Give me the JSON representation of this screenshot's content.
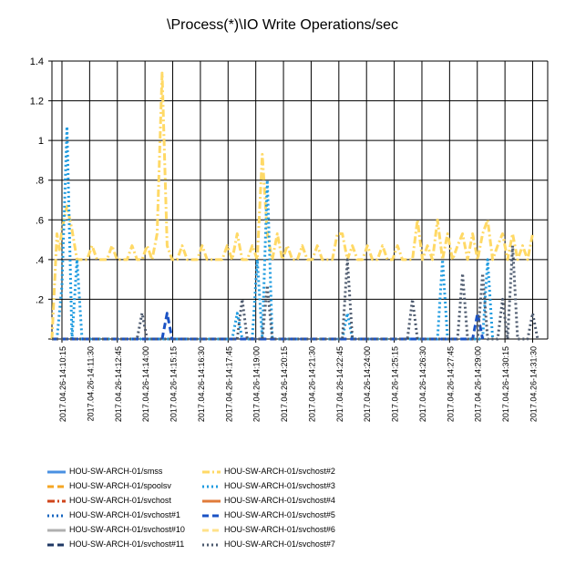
{
  "chart_data": {
    "type": "line",
    "title": "\\Process(*)\\IO Write Operations/sec",
    "xlabel": "",
    "ylabel": "",
    "ylim": [
      0,
      1.4
    ],
    "yticks": [
      "",
      ".2",
      ".4",
      ".6",
      ".8",
      "1",
      "1.2",
      "1.4"
    ],
    "x_tick_labels": [
      "2017.04.26-14:10:15",
      "2017.04.26-14:11:30",
      "2017.04.26-14:12:45",
      "2017.04.26-14:14:00",
      "2017.04.26-14:15:15",
      "2017.04.26-14:16:30",
      "2017.04.26-14:17:45",
      "2017.04.26-14:19:00",
      "2017.04.26-14:20:15",
      "2017.04.26-14:21:30",
      "2017.04.26-14:22:45",
      "2017.04.26-14:24:00",
      "2017.04.26-14:25:15",
      "2017.04.26-14:26:30",
      "2017.04.26-14:27:45",
      "2017.04.26-14:29:00",
      "2017.04.26-14:30:15",
      "2017.04.26-14:31:30"
    ],
    "grid": true,
    "legend_position": "bottom",
    "series": [
      {
        "name": "HOU-SW-ARCH-01/smss",
        "color": "#4a90e2",
        "dash": "solid",
        "points": []
      },
      {
        "name": "HOU-SW-ARCH-01/spoolsv",
        "color": "#f5a623",
        "dash": "dash",
        "points": []
      },
      {
        "name": "HOU-SW-ARCH-01/svchost",
        "color": "#d0451b",
        "dash": "dashdot",
        "points": []
      },
      {
        "name": "HOU-SW-ARCH-01/svchost#1",
        "color": "#1565c0",
        "dash": "dot",
        "points": []
      },
      {
        "name": "HOU-SW-ARCH-01/svchost#10",
        "color": "#b0b0b0",
        "dash": "solid",
        "points": []
      },
      {
        "name": "HOU-SW-ARCH-01/svchost#11",
        "color": "#1f3864",
        "dash": "dash",
        "points": []
      },
      {
        "name": "HOU-SW-ARCH-01/svchost#2",
        "color": "#ffd966",
        "dash": "dashdot",
        "points": [
          [
            0,
            0
          ],
          [
            1,
            0.53
          ],
          [
            1.5,
            0.45
          ],
          [
            2,
            0.55
          ],
          [
            3,
            0.67
          ],
          [
            4,
            0.55
          ],
          [
            5,
            0.4
          ],
          [
            6,
            0.4
          ],
          [
            7,
            0.4
          ],
          [
            8,
            0.47
          ],
          [
            9,
            0.4
          ],
          [
            10,
            0.4
          ],
          [
            11,
            0.4
          ],
          [
            12,
            0.47
          ],
          [
            13,
            0.4
          ],
          [
            14,
            0.4
          ],
          [
            15,
            0.4
          ],
          [
            16,
            0.47
          ],
          [
            17,
            0.4
          ],
          [
            18,
            0.4
          ],
          [
            19,
            0.47
          ],
          [
            20,
            0.4
          ],
          [
            21,
            0.53
          ],
          [
            22,
            1.34
          ],
          [
            23,
            0.47
          ],
          [
            24,
            0.4
          ],
          [
            25,
            0.4
          ],
          [
            26,
            0.47
          ],
          [
            27,
            0.4
          ],
          [
            28,
            0.4
          ],
          [
            29,
            0.4
          ],
          [
            30,
            0.47
          ],
          [
            31,
            0.4
          ],
          [
            32,
            0.4
          ],
          [
            33,
            0.4
          ],
          [
            34,
            0.4
          ],
          [
            35,
            0.47
          ],
          [
            36,
            0.4
          ],
          [
            37,
            0.53
          ],
          [
            38,
            0.4
          ],
          [
            39,
            0.4
          ],
          [
            40,
            0.47
          ],
          [
            41,
            0.4
          ],
          [
            42,
            0.93
          ],
          [
            43,
            0.53
          ],
          [
            44,
            0.4
          ],
          [
            45,
            0.53
          ],
          [
            46,
            0.4
          ],
          [
            47,
            0.47
          ],
          [
            48,
            0.4
          ],
          [
            49,
            0.4
          ],
          [
            50,
            0.47
          ],
          [
            51,
            0.4
          ],
          [
            52,
            0.4
          ],
          [
            53,
            0.47
          ],
          [
            54,
            0.4
          ],
          [
            55,
            0.4
          ],
          [
            56,
            0.4
          ],
          [
            57,
            0.53
          ],
          [
            58,
            0.53
          ],
          [
            59,
            0.4
          ],
          [
            60,
            0.47
          ],
          [
            61,
            0.4
          ],
          [
            62,
            0.4
          ],
          [
            63,
            0.47
          ],
          [
            64,
            0.4
          ],
          [
            65,
            0.4
          ],
          [
            66,
            0.47
          ],
          [
            67,
            0.4
          ],
          [
            68,
            0.4
          ],
          [
            69,
            0.47
          ],
          [
            70,
            0.4
          ],
          [
            71,
            0.4
          ],
          [
            72,
            0.4
          ],
          [
            73,
            0.6
          ],
          [
            74,
            0.4
          ],
          [
            75,
            0.47
          ],
          [
            76,
            0.4
          ],
          [
            77,
            0.6
          ],
          [
            78,
            0.4
          ],
          [
            79,
            0.53
          ],
          [
            80,
            0.4
          ],
          [
            81,
            0.47
          ],
          [
            82,
            0.53
          ],
          [
            83,
            0.4
          ],
          [
            84,
            0.53
          ],
          [
            85,
            0.4
          ],
          [
            86,
            0.53
          ],
          [
            87,
            0.6
          ],
          [
            88,
            0.4
          ],
          [
            89,
            0.47
          ],
          [
            90,
            0.53
          ],
          [
            91,
            0.4
          ],
          [
            92,
            0.53
          ],
          [
            93,
            0.4
          ],
          [
            94,
            0.47
          ],
          [
            95,
            0.4
          ],
          [
            96,
            0.53
          ]
        ]
      },
      {
        "name": "HOU-SW-ARCH-01/svchost#3",
        "color": "#1e9be0",
        "dash": "dot",
        "points": [
          [
            0,
            0
          ],
          [
            1,
            0
          ],
          [
            2,
            0.27
          ],
          [
            3,
            1.07
          ],
          [
            4,
            0
          ],
          [
            5,
            0.4
          ],
          [
            6,
            0
          ],
          [
            36,
            0
          ],
          [
            37,
            0.13
          ],
          [
            38,
            0
          ],
          [
            40,
            0
          ],
          [
            41,
            0.4
          ],
          [
            42,
            0
          ],
          [
            43,
            0.8
          ],
          [
            44,
            0
          ],
          [
            58,
            0
          ],
          [
            59,
            0.13
          ],
          [
            60,
            0
          ],
          [
            77,
            0
          ],
          [
            78,
            0.4
          ],
          [
            79,
            0
          ],
          [
            86,
            0
          ],
          [
            87,
            0.4
          ],
          [
            88,
            0
          ]
        ]
      },
      {
        "name": "HOU-SW-ARCH-01/svchost#4",
        "color": "#e07b39",
        "dash": "solid",
        "points": []
      },
      {
        "name": "HOU-SW-ARCH-01/svchost#5",
        "color": "#1a52c4",
        "dash": "dash",
        "points": [
          [
            0,
            0
          ],
          [
            22,
            0
          ],
          [
            23,
            0.13
          ],
          [
            24,
            0
          ],
          [
            84,
            0
          ],
          [
            85,
            0.13
          ],
          [
            86,
            0
          ]
        ]
      },
      {
        "name": "HOU-SW-ARCH-01/svchost#6",
        "color": "#ffe28a",
        "dash": "dash",
        "points": []
      },
      {
        "name": "HOU-SW-ARCH-01/svchost#7",
        "color": "#4d5a6e",
        "dash": "dot",
        "points": [
          [
            0,
            0
          ],
          [
            17,
            0
          ],
          [
            18,
            0.13
          ],
          [
            19,
            0
          ],
          [
            37,
            0
          ],
          [
            38,
            0.2
          ],
          [
            39,
            0
          ],
          [
            42,
            0
          ],
          [
            43,
            0.27
          ],
          [
            44,
            0
          ],
          [
            58,
            0
          ],
          [
            59,
            0.4
          ],
          [
            60,
            0
          ],
          [
            71,
            0
          ],
          [
            72,
            0.2
          ],
          [
            73,
            0
          ],
          [
            81,
            0
          ],
          [
            82,
            0.33
          ],
          [
            83,
            0
          ],
          [
            85,
            0
          ],
          [
            86,
            0.33
          ],
          [
            87,
            0
          ],
          [
            89,
            0
          ],
          [
            90,
            0.2
          ],
          [
            91,
            0
          ],
          [
            92,
            0.47
          ],
          [
            93,
            0
          ],
          [
            95,
            0
          ],
          [
            96,
            0.13
          ],
          [
            97,
            0
          ]
        ]
      }
    ]
  }
}
